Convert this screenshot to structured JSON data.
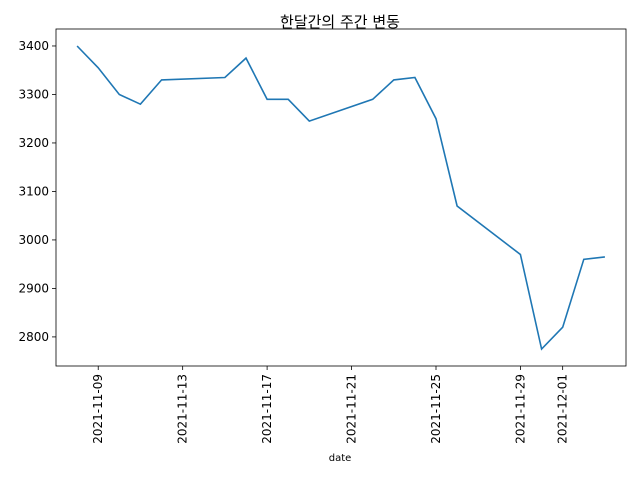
{
  "chart_data": {
    "type": "line",
    "title": "한달간의 주간 변동",
    "xlabel": "date",
    "ylabel": "",
    "x_ticks": [
      "2021-11-09",
      "2021-11-13",
      "2021-11-17",
      "2021-11-21",
      "2021-11-25",
      "2021-11-29",
      "2021-12-01"
    ],
    "y_ticks": [
      2800,
      2900,
      3000,
      3100,
      3200,
      3300,
      3400
    ],
    "xlim": [
      "2021-11-07",
      "2021-12-04"
    ],
    "ylim": [
      2740,
      3435
    ],
    "grid": false,
    "series": [
      {
        "color": "#1f77b4",
        "x": [
          "2021-11-08",
          "2021-11-09",
          "2021-11-10",
          "2021-11-11",
          "2021-11-12",
          "2021-11-15",
          "2021-11-16",
          "2021-11-17",
          "2021-11-18",
          "2021-11-19",
          "2021-11-22",
          "2021-11-23",
          "2021-11-24",
          "2021-11-25",
          "2021-11-26",
          "2021-11-29",
          "2021-11-30",
          "2021-12-01",
          "2021-12-02",
          "2021-12-03"
        ],
        "y": [
          3400,
          3355,
          3300,
          3280,
          3330,
          3335,
          3375,
          3290,
          3290,
          3245,
          3290,
          3330,
          3335,
          3250,
          3070,
          2970,
          2775,
          2820,
          2960,
          2965
        ]
      }
    ]
  }
}
